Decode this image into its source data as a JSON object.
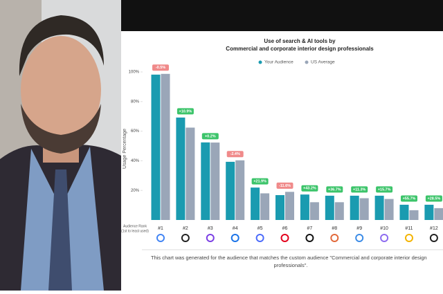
{
  "chart_data": {
    "type": "bar",
    "title": [
      "Use of search & AI tools by",
      "Commercial and corporate interior design professionals"
    ],
    "y_label": "Usage Percentage",
    "x_label": [
      "Audience Rank",
      "(1st to least used)"
    ],
    "categories": [
      "#1",
      "#2",
      "#3",
      "#4",
      "#5",
      "#6",
      "#7",
      "#8",
      "#9",
      "#10",
      "#11",
      "#12"
    ],
    "series": [
      {
        "name": "Your Audience",
        "color": "#1a9bb0",
        "values": [
          98.2,
          69.2,
          52.4,
          39.3,
          21.9,
          16.8,
          17.2,
          16.4,
          16.4,
          16.4,
          10.3,
          10.3
        ]
      },
      {
        "name": "US Average",
        "color": "#9aa6b8",
        "values": [
          98.7,
          62.4,
          52.3,
          40.3,
          18.0,
          19.0,
          12.0,
          12.0,
          14.7,
          14.2,
          6.6,
          8.0
        ]
      }
    ],
    "annotations": [
      "-0.5%",
      "+10.9%",
      "+0.2%",
      "-2.4%",
      "+21.9%",
      "-11.6%",
      "+43.2%",
      "+36.7%",
      "+11.3%",
      "+15.7%",
      "+55.7%",
      "+28.5%"
    ],
    "ylim": [
      0,
      100
    ],
    "yticks": [
      {
        "value": 20,
        "label": "20%"
      },
      {
        "value": 40,
        "label": "40%"
      },
      {
        "value": 60,
        "label": "60%"
      },
      {
        "value": 80,
        "label": "80%"
      },
      {
        "value": 100,
        "label": "100%"
      }
    ],
    "grid": false,
    "footer": [
      "This chart was generated for the audience that matches the custom audience \"Commercial and corporate interior design",
      "professionals\"."
    ]
  }
}
